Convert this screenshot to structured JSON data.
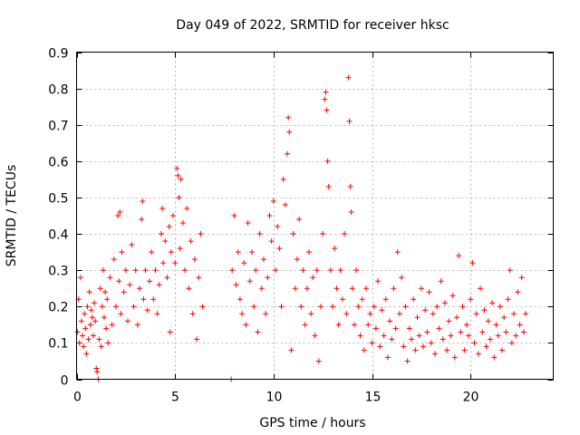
{
  "chart_data": {
    "type": "scatter",
    "title": "Day 049 of 2022, SRMTID for receiver hksc",
    "xlabel": "GPS time / hours",
    "ylabel": "SRMTID / TECUs",
    "xlim": [
      0,
      24.2
    ],
    "ylim": [
      0,
      0.9
    ],
    "xticks": [
      0,
      5,
      10,
      15,
      20
    ],
    "xtick_labels": [
      "0",
      "5",
      "10",
      "15",
      "20"
    ],
    "yticks": [
      0,
      0.1,
      0.2,
      0.3,
      0.4,
      0.5,
      0.6,
      0.7,
      0.8,
      0.9
    ],
    "ytick_labels": [
      "0",
      "0.1",
      "0.2",
      "0.3",
      "0.4",
      "0.5",
      "0.6",
      "0.7",
      "0.8",
      "0.9"
    ],
    "grid": true,
    "marker": "+",
    "color": "#ff0000",
    "series": [
      {
        "name": "SRMTID",
        "points": [
          [
            0.05,
            0.13
          ],
          [
            0.1,
            0.22
          ],
          [
            0.15,
            0.1
          ],
          [
            0.2,
            0.28
          ],
          [
            0.25,
            0.16
          ],
          [
            0.3,
            0.12
          ],
          [
            0.35,
            0.09
          ],
          [
            0.4,
            0.18
          ],
          [
            0.45,
            0.14
          ],
          [
            0.5,
            0.07
          ],
          [
            0.55,
            0.2
          ],
          [
            0.6,
            0.11
          ],
          [
            0.65,
            0.24
          ],
          [
            0.7,
            0.15
          ],
          [
            0.75,
            0.19
          ],
          [
            0.8,
            0.17
          ],
          [
            0.85,
            0.12
          ],
          [
            0.9,
            0.21
          ],
          [
            0.95,
            0.16
          ],
          [
            1.0,
            0.03
          ],
          [
            1.05,
            0.02
          ],
          [
            1.1,
            0.0
          ],
          [
            1.15,
            0.11
          ],
          [
            1.2,
            0.25
          ],
          [
            1.25,
            0.09
          ],
          [
            1.3,
            0.2
          ],
          [
            1.35,
            0.3
          ],
          [
            1.4,
            0.17
          ],
          [
            1.45,
            0.24
          ],
          [
            1.5,
            0.14
          ],
          [
            1.55,
            0.22
          ],
          [
            1.6,
            0.1
          ],
          [
            1.7,
            0.28
          ],
          [
            1.8,
            0.15
          ],
          [
            1.9,
            0.33
          ],
          [
            2.0,
            0.2
          ],
          [
            2.1,
            0.45
          ],
          [
            2.15,
            0.27
          ],
          [
            2.2,
            0.46
          ],
          [
            2.25,
            0.18
          ],
          [
            2.3,
            0.35
          ],
          [
            2.4,
            0.24
          ],
          [
            2.5,
            0.3
          ],
          [
            2.6,
            0.16
          ],
          [
            2.7,
            0.26
          ],
          [
            2.8,
            0.37
          ],
          [
            2.9,
            0.2
          ],
          [
            3.0,
            0.3
          ],
          [
            3.1,
            0.15
          ],
          [
            3.2,
            0.25
          ],
          [
            3.3,
            0.44
          ],
          [
            3.35,
            0.49
          ],
          [
            3.4,
            0.22
          ],
          [
            3.5,
            0.3
          ],
          [
            3.6,
            0.19
          ],
          [
            3.7,
            0.27
          ],
          [
            3.8,
            0.35
          ],
          [
            3.9,
            0.22
          ],
          [
            4.0,
            0.3
          ],
          [
            4.1,
            0.18
          ],
          [
            4.2,
            0.26
          ],
          [
            4.3,
            0.4
          ],
          [
            4.35,
            0.47
          ],
          [
            4.4,
            0.32
          ],
          [
            4.5,
            0.38
          ],
          [
            4.6,
            0.28
          ],
          [
            4.7,
            0.42
          ],
          [
            4.75,
            0.13
          ],
          [
            4.8,
            0.35
          ],
          [
            4.9,
            0.45
          ],
          [
            5.0,
            0.32
          ],
          [
            5.1,
            0.58
          ],
          [
            5.15,
            0.56
          ],
          [
            5.2,
            0.5
          ],
          [
            5.25,
            0.36
          ],
          [
            5.3,
            0.55
          ],
          [
            5.4,
            0.43
          ],
          [
            5.5,
            0.3
          ],
          [
            5.6,
            0.47
          ],
          [
            5.7,
            0.25
          ],
          [
            5.8,
            0.38
          ],
          [
            5.9,
            0.18
          ],
          [
            6.0,
            0.33
          ],
          [
            6.1,
            0.11
          ],
          [
            6.2,
            0.28
          ],
          [
            6.3,
            0.4
          ],
          [
            6.4,
            0.2
          ],
          [
            7.85,
            0.0
          ],
          [
            7.9,
            0.3
          ],
          [
            8.0,
            0.45
          ],
          [
            8.1,
            0.26
          ],
          [
            8.2,
            0.35
          ],
          [
            8.3,
            0.22
          ],
          [
            8.4,
            0.18
          ],
          [
            8.5,
            0.32
          ],
          [
            8.6,
            0.15
          ],
          [
            8.7,
            0.43
          ],
          [
            8.8,
            0.27
          ],
          [
            8.9,
            0.35
          ],
          [
            9.0,
            0.2
          ],
          [
            9.1,
            0.3
          ],
          [
            9.2,
            0.13
          ],
          [
            9.3,
            0.4
          ],
          [
            9.4,
            0.25
          ],
          [
            9.5,
            0.33
          ],
          [
            9.6,
            0.18
          ],
          [
            9.7,
            0.28
          ],
          [
            9.8,
            0.45
          ],
          [
            9.9,
            0.38
          ],
          [
            10.0,
            0.49
          ],
          [
            10.1,
            0.3
          ],
          [
            10.2,
            0.42
          ],
          [
            10.3,
            0.36
          ],
          [
            10.4,
            0.2
          ],
          [
            10.5,
            0.55
          ],
          [
            10.6,
            0.48
          ],
          [
            10.7,
            0.62
          ],
          [
            10.75,
            0.72
          ],
          [
            10.8,
            0.68
          ],
          [
            10.9,
            0.08
          ],
          [
            11.0,
            0.4
          ],
          [
            11.1,
            0.25
          ],
          [
            11.2,
            0.33
          ],
          [
            11.3,
            0.44
          ],
          [
            11.4,
            0.2
          ],
          [
            11.5,
            0.3
          ],
          [
            11.6,
            0.15
          ],
          [
            11.7,
            0.25
          ],
          [
            11.8,
            0.35
          ],
          [
            11.9,
            0.18
          ],
          [
            12.0,
            0.28
          ],
          [
            12.1,
            0.12
          ],
          [
            12.2,
            0.3
          ],
          [
            12.3,
            0.05
          ],
          [
            12.4,
            0.2
          ],
          [
            12.5,
            0.4
          ],
          [
            12.6,
            0.77
          ],
          [
            12.65,
            0.79
          ],
          [
            12.7,
            0.74
          ],
          [
            12.75,
            0.6
          ],
          [
            12.8,
            0.53
          ],
          [
            12.9,
            0.3
          ],
          [
            13.0,
            0.2
          ],
          [
            13.1,
            0.36
          ],
          [
            13.2,
            0.25
          ],
          [
            13.3,
            0.15
          ],
          [
            13.4,
            0.3
          ],
          [
            13.5,
            0.22
          ],
          [
            13.6,
            0.4
          ],
          [
            13.7,
            0.18
          ],
          [
            13.8,
            0.83
          ],
          [
            13.85,
            0.71
          ],
          [
            13.9,
            0.53
          ],
          [
            13.95,
            0.46
          ],
          [
            14.0,
            0.25
          ],
          [
            14.1,
            0.15
          ],
          [
            14.2,
            0.3
          ],
          [
            14.3,
            0.2
          ],
          [
            14.4,
            0.12
          ],
          [
            14.5,
            0.22
          ],
          [
            14.6,
            0.08
          ],
          [
            14.7,
            0.25
          ],
          [
            14.8,
            0.15
          ],
          [
            14.9,
            0.18
          ],
          [
            15.0,
            0.1
          ],
          [
            15.1,
            0.2
          ],
          [
            15.2,
            0.14
          ],
          [
            15.3,
            0.27
          ],
          [
            15.4,
            0.09
          ],
          [
            15.5,
            0.19
          ],
          [
            15.6,
            0.12
          ],
          [
            15.7,
            0.22
          ],
          [
            15.8,
            0.06
          ],
          [
            15.9,
            0.16
          ],
          [
            16.0,
            0.11
          ],
          [
            16.1,
            0.25
          ],
          [
            16.2,
            0.14
          ],
          [
            16.3,
            0.35
          ],
          [
            16.4,
            0.18
          ],
          [
            16.5,
            0.28
          ],
          [
            16.6,
            0.09
          ],
          [
            16.7,
            0.2
          ],
          [
            16.8,
            0.05
          ],
          [
            16.9,
            0.14
          ],
          [
            17.0,
            0.11
          ],
          [
            17.1,
            0.22
          ],
          [
            17.2,
            0.08
          ],
          [
            17.3,
            0.17
          ],
          [
            17.4,
            0.12
          ],
          [
            17.5,
            0.25
          ],
          [
            17.6,
            0.09
          ],
          [
            17.7,
            0.19
          ],
          [
            17.8,
            0.13
          ],
          [
            17.9,
            0.24
          ],
          [
            18.0,
            0.1
          ],
          [
            18.1,
            0.18
          ],
          [
            18.2,
            0.07
          ],
          [
            18.3,
            0.2
          ],
          [
            18.4,
            0.14
          ],
          [
            18.5,
            0.27
          ],
          [
            18.6,
            0.11
          ],
          [
            18.7,
            0.21
          ],
          [
            18.8,
            0.08
          ],
          [
            18.9,
            0.16
          ],
          [
            19.0,
            0.12
          ],
          [
            19.1,
            0.23
          ],
          [
            19.2,
            0.06
          ],
          [
            19.3,
            0.17
          ],
          [
            19.4,
            0.34
          ],
          [
            19.5,
            0.13
          ],
          [
            19.6,
            0.2
          ],
          [
            19.7,
            0.08
          ],
          [
            19.8,
            0.15
          ],
          [
            19.9,
            0.12
          ],
          [
            20.0,
            0.22
          ],
          [
            20.1,
            0.32
          ],
          [
            20.2,
            0.1
          ],
          [
            20.3,
            0.18
          ],
          [
            20.4,
            0.07
          ],
          [
            20.5,
            0.25
          ],
          [
            20.6,
            0.13
          ],
          [
            20.7,
            0.19
          ],
          [
            20.8,
            0.09
          ],
          [
            20.9,
            0.16
          ],
          [
            21.0,
            0.11
          ],
          [
            21.1,
            0.21
          ],
          [
            21.2,
            0.06
          ],
          [
            21.3,
            0.15
          ],
          [
            21.4,
            0.12
          ],
          [
            21.5,
            0.2
          ],
          [
            21.6,
            0.08
          ],
          [
            21.7,
            0.17
          ],
          [
            21.8,
            0.13
          ],
          [
            21.9,
            0.22
          ],
          [
            22.0,
            0.3
          ],
          [
            22.1,
            0.1
          ],
          [
            22.2,
            0.18
          ],
          [
            22.3,
            0.12
          ],
          [
            22.4,
            0.24
          ],
          [
            22.5,
            0.15
          ],
          [
            22.6,
            0.28
          ],
          [
            22.7,
            0.13
          ],
          [
            22.8,
            0.18
          ]
        ]
      }
    ]
  }
}
